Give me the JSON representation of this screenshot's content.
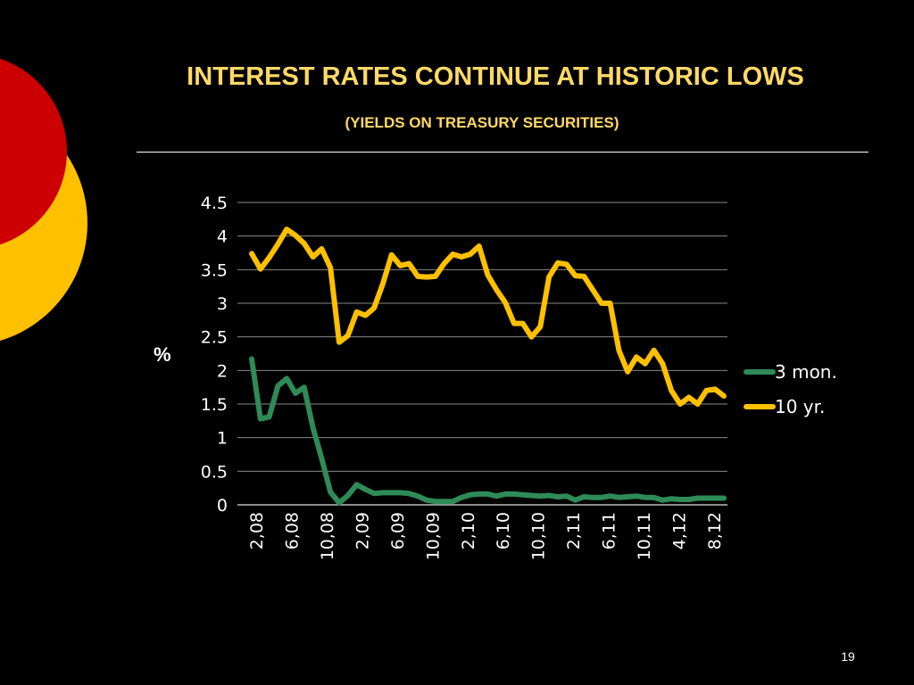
{
  "slide": {
    "title": "INTEREST RATES CONTINUE AT HISTORIC LOWS",
    "subtitle": "(YIELDS ON TREASURY SECURITIES)",
    "page_number": "19"
  },
  "colors": {
    "background": "#000000",
    "title": "#FFD966",
    "series_3mon": "#2E8B57",
    "series_10yr": "#FFC000",
    "deco_red": "#CC0000",
    "deco_yellow": "#FFC000",
    "gridline": "#888888",
    "text": "#FFFFFF"
  },
  "chart_data": {
    "type": "line",
    "title": "",
    "xlabel": "",
    "ylabel": "%",
    "ylim": [
      0,
      4.5
    ],
    "yticks": [
      "0",
      "0.5",
      "1",
      "1.5",
      "2",
      "2.5",
      "3",
      "3.5",
      "4",
      "4.5"
    ],
    "grid": true,
    "legend_position": "right",
    "x_tick_labels": [
      "2,08",
      "6,08",
      "10,08",
      "2,09",
      "6,09",
      "10,09",
      "2,10",
      "6,10",
      "10,10",
      "2,11",
      "6,11",
      "10,11",
      "4,12",
      "8,12"
    ],
    "series": [
      {
        "name": "3 mon.",
        "values": [
          2.17,
          1.28,
          1.31,
          1.77,
          1.88,
          1.66,
          1.75,
          1.15,
          0.69,
          0.19,
          0.03,
          0.14,
          0.3,
          0.23,
          0.17,
          0.18,
          0.18,
          0.18,
          0.17,
          0.13,
          0.07,
          0.05,
          0.05,
          0.05,
          0.11,
          0.15,
          0.16,
          0.16,
          0.13,
          0.16,
          0.16,
          0.15,
          0.14,
          0.13,
          0.14,
          0.12,
          0.13,
          0.07,
          0.12,
          0.11,
          0.11,
          0.13,
          0.11,
          0.12,
          0.13,
          0.11,
          0.11,
          0.07,
          0.09,
          0.08,
          0.08,
          0.1,
          0.1,
          0.1,
          0.1
        ]
      },
      {
        "name": "10 yr.",
        "values": [
          3.74,
          3.51,
          3.68,
          3.88,
          4.1,
          4.01,
          3.89,
          3.69,
          3.81,
          3.53,
          2.42,
          2.52,
          2.87,
          2.82,
          2.93,
          3.29,
          3.72,
          3.56,
          3.59,
          3.4,
          3.39,
          3.4,
          3.59,
          3.73,
          3.69,
          3.73,
          3.85,
          3.42,
          3.2,
          3.01,
          2.7,
          2.7,
          2.5,
          2.65,
          3.39,
          3.6,
          3.58,
          3.41,
          3.4,
          3.2,
          3.0,
          3.0,
          2.3,
          1.98,
          2.2,
          2.1,
          2.3,
          2.1,
          1.7,
          1.5,
          1.6,
          1.5,
          1.7,
          1.72,
          1.62
        ]
      }
    ]
  }
}
